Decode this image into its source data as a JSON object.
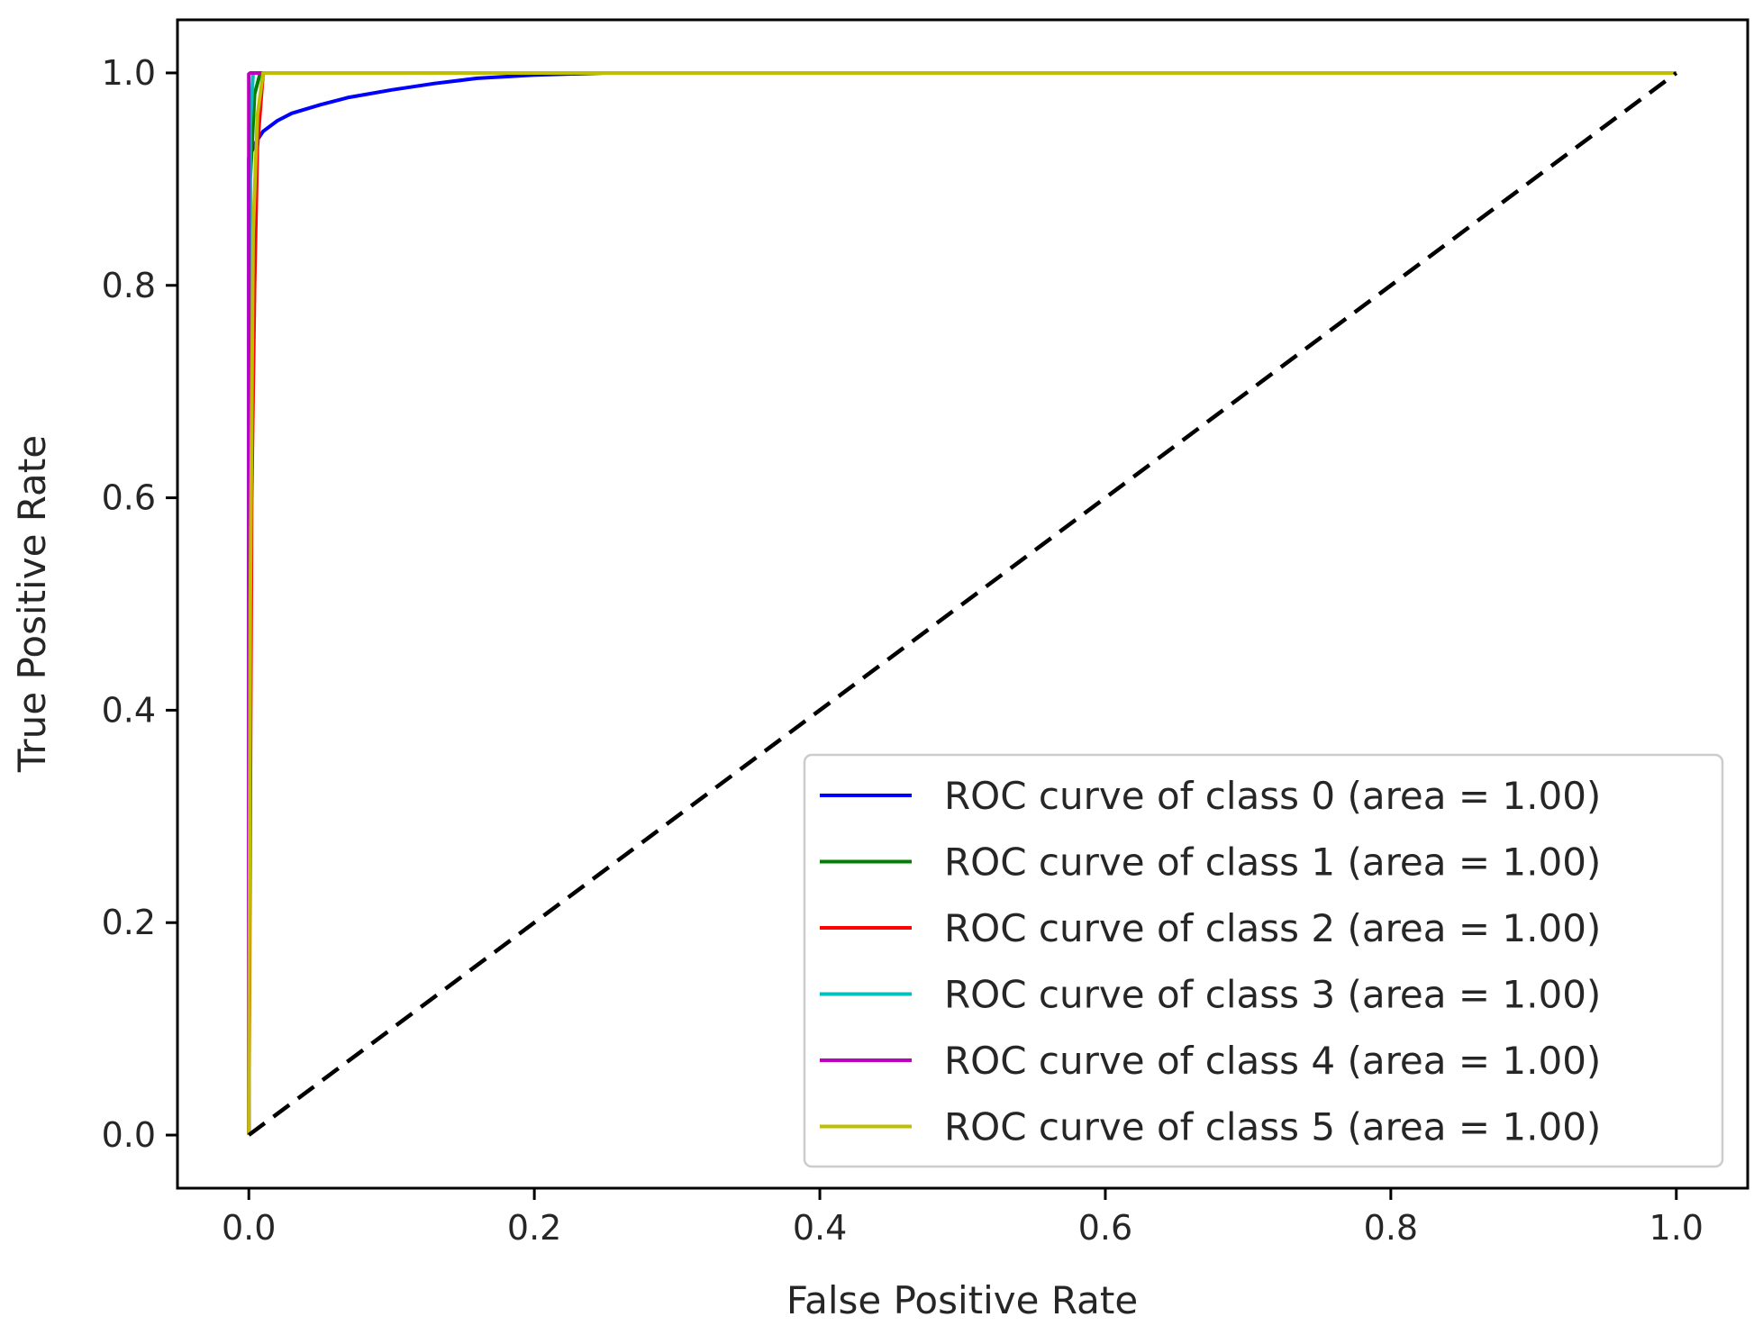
{
  "chart_data": {
    "type": "line",
    "title": "",
    "xlabel": "False Positive Rate",
    "ylabel": "True Positive Rate",
    "xlim": [
      -0.05,
      1.05
    ],
    "ylim": [
      -0.05,
      1.05
    ],
    "xticks": [
      "0.0",
      "0.2",
      "0.4",
      "0.6",
      "0.8",
      "1.0"
    ],
    "yticks": [
      "0.0",
      "0.2",
      "0.4",
      "0.6",
      "0.8",
      "1.0"
    ],
    "grid": false,
    "legend_position": "lower-right",
    "series": [
      {
        "name": "ROC curve of class 0 (area = 1.00)",
        "color": "#0000ff",
        "x": [
          0,
          0.0,
          0.005,
          0.01,
          0.02,
          0.03,
          0.05,
          0.07,
          0.1,
          0.13,
          0.16,
          0.2,
          0.25,
          0.3,
          0.5,
          1.0
        ],
        "y": [
          0,
          0.92,
          0.935,
          0.945,
          0.955,
          0.962,
          0.97,
          0.977,
          0.984,
          0.99,
          0.995,
          0.998,
          1.0,
          1.0,
          1.0,
          1.0
        ]
      },
      {
        "name": "ROC curve of class 1 (area = 1.00)",
        "color": "#008000",
        "x": [
          0,
          0.001,
          0.004,
          0.008,
          1.0
        ],
        "y": [
          0,
          0.9,
          0.98,
          1.0,
          1.0
        ]
      },
      {
        "name": "ROC curve of class 2 (area = 1.00)",
        "color": "#ff0000",
        "x": [
          0,
          0.002,
          0.004,
          0.006,
          0.01,
          1.0
        ],
        "y": [
          0,
          0.6,
          0.8,
          0.93,
          1.0,
          1.0
        ]
      },
      {
        "name": "ROC curve of class 3 (area = 1.00)",
        "color": "#00bfbf",
        "x": [
          0,
          0.001,
          0.003,
          1.0
        ],
        "y": [
          0,
          0.95,
          1.0,
          1.0
        ]
      },
      {
        "name": "ROC curve of class 4 (area = 1.00)",
        "color": "#bf00bf",
        "x": [
          0,
          0.0,
          0.001,
          1.0
        ],
        "y": [
          0,
          0.999,
          1.0,
          1.0
        ]
      },
      {
        "name": "ROC curve of class 5 (area = 1.00)",
        "color": "#bfbf00",
        "x": [
          0,
          0.001,
          0.003,
          0.006,
          0.01,
          1.0
        ],
        "y": [
          0,
          0.5,
          0.85,
          0.96,
          1.0,
          1.0
        ]
      }
    ],
    "reference_line": {
      "color": "#000000",
      "style": "dashed",
      "x": [
        0,
        1
      ],
      "y": [
        0,
        1
      ]
    }
  }
}
